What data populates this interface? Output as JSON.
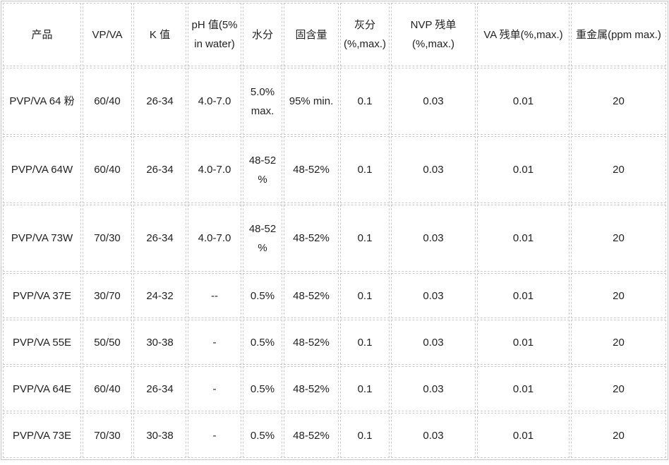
{
  "table": {
    "headers": [
      "产品",
      "VP/VA",
      "K 值",
      "pH 值(5% in water)",
      "水分",
      "固含量",
      "灰分 (%,max.)",
      "NVP 残单 (%,max.)",
      "VA 残单(%,max.)",
      "重金属(ppm max.)"
    ],
    "rows": [
      [
        "PVP/VA 64 粉",
        "60/40",
        "26-34",
        "4.0-7.0",
        "5.0% max.",
        "95% min.",
        "0.1",
        "0.03",
        "0.01",
        "20"
      ],
      [
        "PVP/VA 64W",
        "60/40",
        "26-34",
        "4.0-7.0",
        "48-52 %",
        "48-52%",
        "0.1",
        "0.03",
        "0.01",
        "20"
      ],
      [
        "PVP/VA 73W",
        "70/30",
        "26-34",
        "4.0-7.0",
        "48-52 %",
        "48-52%",
        "0.1",
        "0.03",
        "0.01",
        "20"
      ],
      [
        "PVP/VA 37E",
        "30/70",
        "24-32",
        "--",
        "0.5%",
        "48-52%",
        "0.1",
        "0.03",
        "0.01",
        "20"
      ],
      [
        "PVP/VA 55E",
        "50/50",
        "30-38",
        "-",
        "0.5%",
        "48-52%",
        "0.1",
        "0.03",
        "0.01",
        "20"
      ],
      [
        "PVP/VA 64E",
        "60/40",
        "26-34",
        "-",
        "0.5%",
        "48-52%",
        "0.1",
        "0.03",
        "0.01",
        "20"
      ],
      [
        "PVP/VA 73E",
        "70/30",
        "30-38",
        "-",
        "0.5%",
        "48-52%",
        "0.1",
        "0.03",
        "0.01",
        "20"
      ]
    ],
    "colors": {
      "border": "#cbcbcb",
      "text": "#222222",
      "background": "#ffffff"
    }
  }
}
